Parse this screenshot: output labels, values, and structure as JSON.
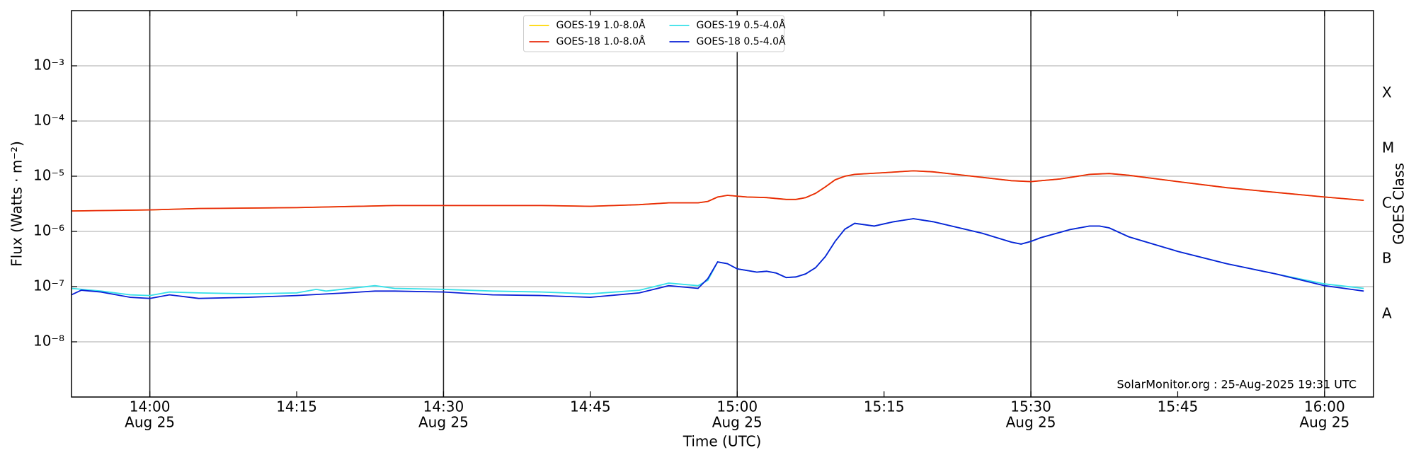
{
  "chart_data": {
    "type": "line",
    "xlabel": "Time (UTC)",
    "ylabel": "Flux (Watts · m⁻²)",
    "y2label": "GOES Class",
    "annotation": "SolarMonitor.org : 25-Aug-2025 19:31 UTC",
    "log_y": true,
    "grid": true,
    "legend": "top center",
    "xlim": [
      "13:52",
      "16:05"
    ],
    "ylim": [
      1e-09,
      0.01
    ],
    "xticks": [
      {
        "value": "14:00",
        "label": "14:00",
        "date": "Aug 25"
      },
      {
        "value": "14:15",
        "label": "14:15"
      },
      {
        "value": "14:30",
        "label": "14:30",
        "date": "Aug 25"
      },
      {
        "value": "14:45",
        "label": "14:45"
      },
      {
        "value": "15:00",
        "label": "15:00",
        "date": "Aug 25"
      },
      {
        "value": "15:15",
        "label": "15:15"
      },
      {
        "value": "15:30",
        "label": "15:30",
        "date": "Aug 25"
      },
      {
        "value": "15:45",
        "label": "15:45"
      },
      {
        "value": "16:00",
        "label": "16:00",
        "date": "Aug 25"
      }
    ],
    "yticks": [
      {
        "value": 1e-08,
        "label": "10⁻⁸"
      },
      {
        "value": 1e-07,
        "label": "10⁻⁷"
      },
      {
        "value": 1e-06,
        "label": "10⁻⁶"
      },
      {
        "value": 1e-05,
        "label": "10⁻⁵"
      },
      {
        "value": 0.0001,
        "label": "10⁻⁴"
      },
      {
        "value": 0.001,
        "label": "10⁻³"
      }
    ],
    "y2ticks": [
      {
        "value": 1e-08,
        "label": "A"
      },
      {
        "value": 1e-07,
        "label": "B"
      },
      {
        "value": 1e-06,
        "label": "C"
      },
      {
        "value": 1e-05,
        "label": "M"
      },
      {
        "value": 0.0001,
        "label": "X"
      }
    ],
    "series": [
      {
        "name": "GOES-19 1.0-8.0Å",
        "color": "#ffd700",
        "x": [
          "13:52",
          "14:00",
          "14:05",
          "14:15",
          "14:25",
          "14:30",
          "14:40",
          "14:45",
          "14:50",
          "14:53",
          "14:56",
          "14:57",
          "14:58",
          "14:59",
          "15:01",
          "15:03",
          "15:05",
          "15:06",
          "15:07",
          "15:08",
          "15:09",
          "15:10",
          "15:11",
          "15:12",
          "15:15",
          "15:18",
          "15:20",
          "15:24",
          "15:28",
          "15:30",
          "15:33",
          "15:36",
          "15:38",
          "15:40",
          "15:45",
          "15:50",
          "15:55",
          "16:00",
          "16:04"
        ],
        "values": [
          2.35e-06,
          2.45e-06,
          2.6e-06,
          2.7e-06,
          2.95e-06,
          2.95e-06,
          2.95e-06,
          2.85e-06,
          3.05e-06,
          3.3e-06,
          3.3e-06,
          3.5e-06,
          4.2e-06,
          4.5e-06,
          4.2e-06,
          4.1e-06,
          3.8e-06,
          3.8e-06,
          4.1e-06,
          4.9e-06,
          6.4e-06,
          8.6e-06,
          1e-05,
          1.08e-05,
          1.16e-05,
          1.25e-05,
          1.2e-05,
          1e-05,
          8.3e-06,
          8e-06,
          8.9e-06,
          1.08e-05,
          1.12e-05,
          1.04e-05,
          8e-06,
          6.2e-06,
          5.1e-06,
          4.2e-06,
          3.65e-06
        ]
      },
      {
        "name": "GOES-18 1.0-8.0Å",
        "color": "#e8290b",
        "x": [
          "13:52",
          "14:00",
          "14:05",
          "14:15",
          "14:25",
          "14:30",
          "14:40",
          "14:45",
          "14:50",
          "14:53",
          "14:56",
          "14:57",
          "14:58",
          "14:59",
          "15:01",
          "15:03",
          "15:05",
          "15:06",
          "15:07",
          "15:08",
          "15:09",
          "15:10",
          "15:11",
          "15:12",
          "15:15",
          "15:18",
          "15:20",
          "15:24",
          "15:28",
          "15:30",
          "15:33",
          "15:36",
          "15:38",
          "15:40",
          "15:45",
          "15:50",
          "15:55",
          "16:00",
          "16:04"
        ],
        "values": [
          2.35e-06,
          2.45e-06,
          2.6e-06,
          2.7e-06,
          2.95e-06,
          2.95e-06,
          2.95e-06,
          2.85e-06,
          3.05e-06,
          3.3e-06,
          3.3e-06,
          3.5e-06,
          4.2e-06,
          4.5e-06,
          4.2e-06,
          4.1e-06,
          3.8e-06,
          3.8e-06,
          4.1e-06,
          4.9e-06,
          6.4e-06,
          8.6e-06,
          1e-05,
          1.08e-05,
          1.16e-05,
          1.25e-05,
          1.2e-05,
          1e-05,
          8.3e-06,
          8e-06,
          8.9e-06,
          1.08e-05,
          1.12e-05,
          1.04e-05,
          8e-06,
          6.2e-06,
          5.1e-06,
          4.2e-06,
          3.65e-06
        ]
      },
      {
        "name": "GOES-19 0.5-4.0Å",
        "color": "#35e0e8",
        "x": [
          "13:52",
          "13:55",
          "13:58",
          "14:00",
          "14:02",
          "14:05",
          "14:10",
          "14:15",
          "14:17",
          "14:18",
          "14:23",
          "14:25",
          "14:30",
          "14:35",
          "14:40",
          "14:45",
          "14:50",
          "14:53",
          "14:56",
          "14:57",
          "14:58",
          "14:59",
          "15:00",
          "15:02",
          "15:03",
          "15:04",
          "15:05",
          "15:06",
          "15:07",
          "15:08",
          "15:09",
          "15:10",
          "15:11",
          "15:12",
          "15:14",
          "15:16",
          "15:18",
          "15:20",
          "15:25",
          "15:28",
          "15:29",
          "15:30",
          "15:31",
          "15:34",
          "15:36",
          "15:37",
          "15:38",
          "15:40",
          "15:45",
          "15:50",
          "15:55",
          "16:00",
          "16:04"
        ],
        "values": [
          9.3e-08,
          8.3e-08,
          7.1e-08,
          6.9e-08,
          8e-08,
          7.7e-08,
          7.4e-08,
          7.7e-08,
          8.9e-08,
          8.3e-08,
          1.04e-07,
          9.3e-08,
          8.9e-08,
          8.3e-08,
          8e-08,
          7.4e-08,
          8.6e-08,
          1.16e-07,
          1.04e-07,
          1.3e-07,
          2.8e-07,
          2.6e-07,
          2.1e-07,
          1.83e-07,
          1.9e-07,
          1.76e-07,
          1.46e-07,
          1.5e-07,
          1.7e-07,
          2.2e-07,
          3.5e-07,
          6.6e-07,
          1.1e-06,
          1.4e-06,
          1.25e-06,
          1.5e-06,
          1.7e-06,
          1.5e-06,
          9.3e-07,
          6.4e-07,
          5.9e-07,
          6.6e-07,
          7.7e-07,
          1.08e-06,
          1.25e-06,
          1.25e-06,
          1.16e-06,
          8e-07,
          4.35e-07,
          2.6e-07,
          1.7e-07,
          1.12e-07,
          9.3e-08
        ]
      },
      {
        "name": "GOES-18 0.5-4.0Å",
        "color": "#0a1fd6",
        "x": [
          "13:52",
          "13:53",
          "13:55",
          "13:58",
          "14:00",
          "14:02",
          "14:05",
          "14:10",
          "14:15",
          "14:20",
          "14:23",
          "14:25",
          "14:30",
          "14:35",
          "14:40",
          "14:45",
          "14:50",
          "14:53",
          "14:56",
          "14:57",
          "14:58",
          "14:59",
          "15:00",
          "15:02",
          "15:03",
          "15:04",
          "15:05",
          "15:06",
          "15:07",
          "15:08",
          "15:09",
          "15:10",
          "15:11",
          "15:12",
          "15:14",
          "15:16",
          "15:18",
          "15:20",
          "15:25",
          "15:28",
          "15:29",
          "15:30",
          "15:31",
          "15:34",
          "15:36",
          "15:37",
          "15:38",
          "15:40",
          "15:45",
          "15:50",
          "15:55",
          "16:00",
          "16:04"
        ],
        "values": [
          7.1e-08,
          8.6e-08,
          8e-08,
          6.4e-08,
          6.1e-08,
          7.1e-08,
          6.1e-08,
          6.4e-08,
          6.9e-08,
          7.7e-08,
          8.3e-08,
          8.3e-08,
          8e-08,
          7.1e-08,
          6.9e-08,
          6.4e-08,
          7.7e-08,
          1.04e-07,
          9.3e-08,
          1.4e-07,
          2.8e-07,
          2.6e-07,
          2.1e-07,
          1.83e-07,
          1.9e-07,
          1.76e-07,
          1.46e-07,
          1.5e-07,
          1.7e-07,
          2.2e-07,
          3.5e-07,
          6.6e-07,
          1.1e-06,
          1.4e-06,
          1.25e-06,
          1.5e-06,
          1.7e-06,
          1.5e-06,
          9.3e-07,
          6.4e-07,
          5.9e-07,
          6.6e-07,
          7.7e-07,
          1.08e-06,
          1.25e-06,
          1.25e-06,
          1.16e-06,
          8e-07,
          4.35e-07,
          2.6e-07,
          1.7e-07,
          1.04e-07,
          8.3e-08
        ]
      }
    ]
  }
}
